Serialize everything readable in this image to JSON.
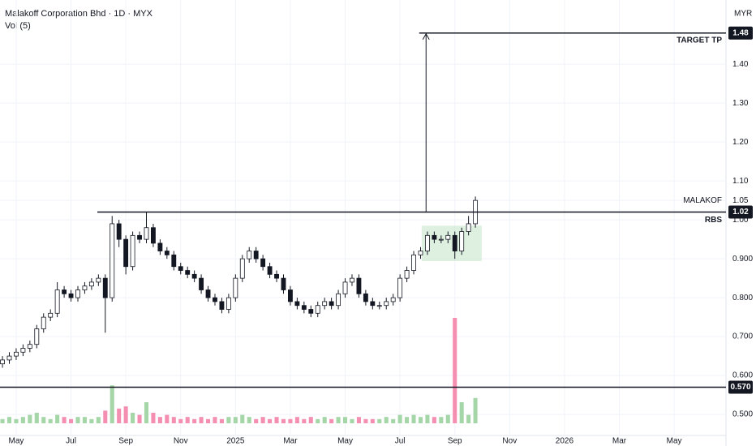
{
  "chart_data": {
    "type": "candlestick",
    "title": "Malakoff Corporation Bhd · 1D · MYX",
    "indicator": "Vol (5)",
    "currency": "MYR",
    "xlim": [
      -0.59,
      25.89
    ],
    "xticks": [
      {
        "value": 0,
        "label": "May"
      },
      {
        "value": 2,
        "label": "Jul"
      },
      {
        "value": 4,
        "label": "Sep"
      },
      {
        "value": 6,
        "label": "Nov"
      },
      {
        "value": 8,
        "label": "2025"
      },
      {
        "value": 10,
        "label": "Mar"
      },
      {
        "value": 12,
        "label": "May"
      },
      {
        "value": 14,
        "label": "Jul"
      },
      {
        "value": 16,
        "label": "Sep"
      },
      {
        "value": 18,
        "label": "Nov"
      },
      {
        "value": 20,
        "label": "2026"
      },
      {
        "value": 22,
        "label": "Mar"
      },
      {
        "value": 24,
        "label": "May"
      }
    ],
    "ylim": [
      0.446,
      1.565
    ],
    "yticks": [
      {
        "value": 1.4,
        "label": "1.40"
      },
      {
        "value": 1.3,
        "label": "1.30"
      },
      {
        "value": 1.2,
        "label": "1.20"
      },
      {
        "value": 1.1,
        "label": "1.10"
      },
      1.05,
      {
        "value": 1.0,
        "label": "1.00"
      },
      {
        "value": 0.9,
        "label": "0.900"
      },
      {
        "value": 0.8,
        "label": "0.800"
      },
      {
        "value": 0.7,
        "label": "0.700"
      },
      {
        "value": 0.6,
        "label": "0.600"
      },
      {
        "value": 0.5,
        "label": "0.500"
      }
    ],
    "x": [
      -0.5,
      -0.25,
      0,
      0.25,
      0.5,
      0.75,
      1,
      1.25,
      1.5,
      1.75,
      2,
      2.25,
      2.5,
      2.75,
      3,
      3.25,
      3.5,
      3.75,
      4,
      4.25,
      4.5,
      4.75,
      5,
      5.25,
      5.5,
      5.75,
      6,
      6.25,
      6.5,
      6.75,
      7,
      7.25,
      7.5,
      7.75,
      8,
      8.25,
      8.5,
      8.75,
      9,
      9.25,
      9.5,
      9.75,
      10,
      10.25,
      10.5,
      10.75,
      11,
      11.25,
      11.5,
      11.75,
      12,
      12.25,
      12.5,
      12.75,
      13,
      13.25,
      13.5,
      13.75,
      14,
      14.25,
      14.5,
      14.75,
      15,
      15.25,
      15.5,
      15.75,
      16,
      16.25,
      16.5,
      16.75
    ],
    "open": [
      0.63,
      0.64,
      0.65,
      0.66,
      0.67,
      0.68,
      0.72,
      0.75,
      0.76,
      0.82,
      0.81,
      0.8,
      0.82,
      0.83,
      0.84,
      0.85,
      0.8,
      0.99,
      0.95,
      0.88,
      0.96,
      0.95,
      0.98,
      0.94,
      0.92,
      0.91,
      0.88,
      0.87,
      0.86,
      0.85,
      0.82,
      0.8,
      0.79,
      0.77,
      0.8,
      0.85,
      0.9,
      0.92,
      0.9,
      0.88,
      0.86,
      0.85,
      0.82,
      0.79,
      0.78,
      0.77,
      0.76,
      0.78,
      0.79,
      0.78,
      0.81,
      0.84,
      0.85,
      0.81,
      0.79,
      0.78,
      0.78,
      0.79,
      0.8,
      0.85,
      0.87,
      0.91,
      0.92,
      0.96,
      0.95,
      0.95,
      0.96,
      0.92,
      0.97,
      0.99
    ],
    "high": [
      0.65,
      0.66,
      0.67,
      0.68,
      0.69,
      0.73,
      0.76,
      0.77,
      0.84,
      0.83,
      0.82,
      0.83,
      0.84,
      0.85,
      0.86,
      0.86,
      1.01,
      1.0,
      0.96,
      0.97,
      0.97,
      1.02,
      0.99,
      0.95,
      0.93,
      0.92,
      0.89,
      0.88,
      0.87,
      0.86,
      0.83,
      0.81,
      0.8,
      0.81,
      0.86,
      0.91,
      0.93,
      0.93,
      0.91,
      0.89,
      0.87,
      0.86,
      0.83,
      0.8,
      0.79,
      0.78,
      0.79,
      0.8,
      0.8,
      0.82,
      0.85,
      0.86,
      0.86,
      0.82,
      0.8,
      0.79,
      0.8,
      0.81,
      0.86,
      0.88,
      0.92,
      0.93,
      0.97,
      0.97,
      0.96,
      0.97,
      0.97,
      0.98,
      1.01,
      1.06
    ],
    "low": [
      0.62,
      0.63,
      0.64,
      0.65,
      0.66,
      0.67,
      0.71,
      0.74,
      0.75,
      0.8,
      0.79,
      0.79,
      0.81,
      0.82,
      0.83,
      0.71,
      0.79,
      0.93,
      0.86,
      0.87,
      0.94,
      0.94,
      0.93,
      0.91,
      0.9,
      0.87,
      0.86,
      0.85,
      0.84,
      0.81,
      0.79,
      0.78,
      0.76,
      0.76,
      0.79,
      0.84,
      0.89,
      0.89,
      0.87,
      0.85,
      0.84,
      0.81,
      0.78,
      0.77,
      0.76,
      0.75,
      0.75,
      0.77,
      0.77,
      0.77,
      0.8,
      0.83,
      0.8,
      0.78,
      0.77,
      0.77,
      0.77,
      0.78,
      0.79,
      0.84,
      0.86,
      0.9,
      0.91,
      0.94,
      0.94,
      0.94,
      0.9,
      0.91,
      0.96,
      0.98
    ],
    "close": [
      0.64,
      0.65,
      0.66,
      0.67,
      0.68,
      0.72,
      0.75,
      0.76,
      0.82,
      0.81,
      0.8,
      0.82,
      0.83,
      0.84,
      0.85,
      0.8,
      0.99,
      0.95,
      0.88,
      0.96,
      0.95,
      0.98,
      0.94,
      0.92,
      0.91,
      0.88,
      0.87,
      0.86,
      0.85,
      0.82,
      0.8,
      0.79,
      0.77,
      0.8,
      0.85,
      0.9,
      0.92,
      0.9,
      0.88,
      0.86,
      0.85,
      0.82,
      0.79,
      0.78,
      0.77,
      0.76,
      0.78,
      0.79,
      0.78,
      0.81,
      0.84,
      0.85,
      0.81,
      0.79,
      0.78,
      0.78,
      0.79,
      0.8,
      0.85,
      0.87,
      0.91,
      0.92,
      0.96,
      0.95,
      0.95,
      0.96,
      0.92,
      0.97,
      0.99,
      1.05
    ],
    "volume": [
      2,
      3,
      2,
      3,
      4,
      5,
      3,
      2,
      4,
      3,
      2,
      3,
      3,
      2,
      3,
      6,
      18,
      7,
      8,
      5,
      4,
      10,
      5,
      3,
      4,
      3,
      2,
      3,
      2,
      3,
      2,
      3,
      2,
      3,
      3,
      4,
      3,
      2,
      3,
      2,
      3,
      2,
      2,
      3,
      2,
      3,
      2,
      3,
      2,
      3,
      3,
      2,
      3,
      2,
      2,
      2,
      3,
      2,
      4,
      3,
      4,
      3,
      4,
      3,
      3,
      4,
      50,
      10,
      4,
      12
    ],
    "up_color": "#a5d6a7",
    "down_color": "#f48fb1",
    "levels": [
      {
        "name": "TARGET TP",
        "value": 1.48,
        "from": 14.7
      },
      {
        "name": "RBS",
        "value": 1.02,
        "from": 2.96
      },
      {
        "value": 0.57,
        "label": "0.570"
      }
    ],
    "symbol": {
      "label": "MALAKOF",
      "value": 1.05
    },
    "arrow": {
      "x": 14.95,
      "y": [
        1.02,
        1.48
      ]
    },
    "zone": {
      "x": [
        14.79,
        16.98
      ],
      "y": [
        0.894,
        0.985
      ],
      "color": "#c8e6c9"
    }
  }
}
